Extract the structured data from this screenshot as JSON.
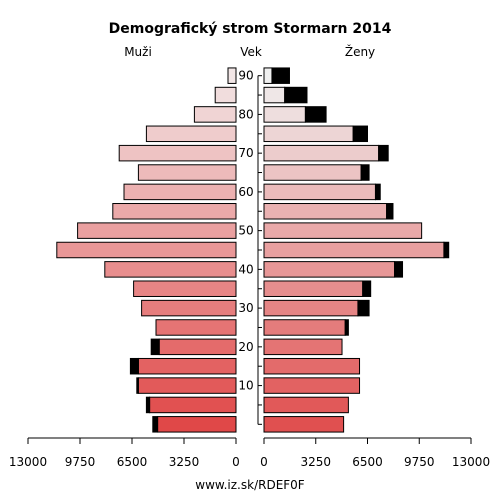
{
  "chart_data": {
    "type": "bar",
    "orientation": "horizontal-pyramid",
    "title": "Demografický strom Stormarn 2014",
    "left_label": "Muži",
    "center_label": "Vek",
    "right_label": "Ženy",
    "footer": "www.iz.sk/RDEF0F",
    "xlim": [
      0,
      13000
    ],
    "x_ticks_left": [
      "13000",
      "9750",
      "6500",
      "3250",
      "0"
    ],
    "x_ticks_right": [
      "0",
      "3250",
      "6500",
      "9750",
      "13000"
    ],
    "x_tick_values": [
      0,
      3250,
      6500,
      9750,
      13000
    ],
    "age_ticks": [
      "10",
      "20",
      "30",
      "40",
      "50",
      "60",
      "70",
      "80",
      "90"
    ],
    "age_groups": [
      "0-4",
      "5-9",
      "10-14",
      "15-19",
      "20-24",
      "25-29",
      "30-34",
      "35-39",
      "40-44",
      "45-49",
      "50-54",
      "55-59",
      "60-64",
      "65-69",
      "70-74",
      "75-79",
      "80-84",
      "85-89",
      "90+"
    ],
    "series": [
      {
        "name": "Muži",
        "values": [
          4900,
          5400,
          6100,
          6100,
          4800,
          5000,
          5900,
          6400,
          8200,
          11200,
          9900,
          7700,
          7000,
          6100,
          7300,
          5600,
          2600,
          1300,
          500
        ]
      },
      {
        "name": "Ženy",
        "values": [
          5000,
          5300,
          6000,
          6000,
          4900,
          5100,
          5900,
          6200,
          8200,
          11300,
          9900,
          7700,
          7000,
          6100,
          7200,
          5600,
          2600,
          1300,
          500
        ]
      }
    ],
    "excess": [
      {
        "name": "Muži",
        "values": [
          300,
          200,
          100,
          500,
          500,
          0,
          0,
          0,
          0,
          0,
          0,
          0,
          0,
          0,
          0,
          0,
          0,
          0,
          0
        ]
      },
      {
        "name": "Ženy",
        "values": [
          0,
          0,
          0,
          0,
          0,
          200,
          700,
          500,
          500,
          300,
          0,
          400,
          300,
          500,
          600,
          900,
          1300,
          1400,
          1100
        ]
      }
    ],
    "colors": {
      "male_young": "#e04848",
      "male_old": "#f2e6e6",
      "female_young": "#e05050",
      "female_old": "#f0f0f0",
      "excess": "#000000",
      "stroke": "#000000"
    }
  }
}
